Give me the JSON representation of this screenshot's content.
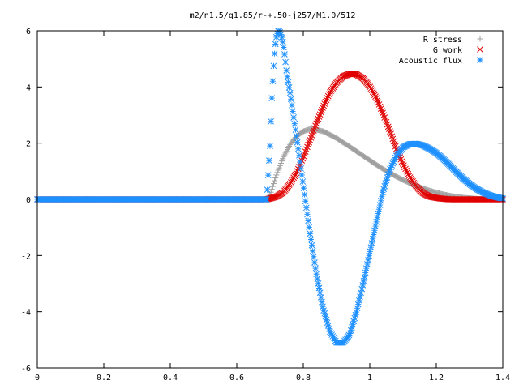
{
  "chart_data": {
    "type": "scatter",
    "title": "m2/n1.5/q1.85/r-+.50-j257/M1.0/512",
    "xlabel": "",
    "ylabel": "",
    "xlim": [
      0,
      1.4
    ],
    "ylim": [
      -6,
      6
    ],
    "xticks": [
      0,
      0.2,
      0.4,
      0.6,
      0.8,
      1.0,
      1.2,
      1.4
    ],
    "xtick_labels": [
      "0",
      "0.2",
      "0.4",
      "0.6",
      "0.8",
      "1",
      "1.2",
      "1.4"
    ],
    "yticks": [
      -6,
      -4,
      -2,
      0,
      2,
      4,
      6
    ],
    "ytick_labels": [
      "-6",
      "-4",
      "-2",
      "0",
      "2",
      "4",
      "6"
    ],
    "grid": false,
    "legend_position": "top-right",
    "series": [
      {
        "name": "R stress",
        "marker": "plus",
        "color": "#a0a0a0",
        "x": [
          0,
          0.05,
          0.1,
          0.15,
          0.2,
          0.25,
          0.3,
          0.35,
          0.4,
          0.45,
          0.5,
          0.55,
          0.6,
          0.65,
          0.69,
          0.7,
          0.72,
          0.74,
          0.76,
          0.78,
          0.8,
          0.82,
          0.84,
          0.86,
          0.88,
          0.9,
          0.92,
          0.94,
          0.96,
          0.98,
          1.0,
          1.02,
          1.04,
          1.06,
          1.08,
          1.1,
          1.12,
          1.14,
          1.16,
          1.18,
          1.2,
          1.22,
          1.24,
          1.26,
          1.28,
          1.3,
          1.32,
          1.34,
          1.36,
          1.38,
          1.4
        ],
        "y": [
          0,
          0,
          0,
          0,
          0,
          0,
          0,
          0,
          0,
          0,
          0,
          0,
          0,
          0,
          0,
          0.15,
          0.9,
          1.5,
          1.95,
          2.25,
          2.42,
          2.5,
          2.48,
          2.42,
          2.3,
          2.18,
          2.02,
          1.87,
          1.71,
          1.55,
          1.39,
          1.23,
          1.08,
          0.94,
          0.81,
          0.69,
          0.58,
          0.48,
          0.39,
          0.31,
          0.24,
          0.18,
          0.13,
          0.09,
          0.06,
          0.04,
          0.02,
          0.01,
          0.005,
          0,
          0
        ]
      },
      {
        "name": "G work",
        "marker": "cross",
        "color": "#e00000",
        "x": [
          0,
          0.05,
          0.1,
          0.15,
          0.2,
          0.25,
          0.3,
          0.35,
          0.4,
          0.45,
          0.5,
          0.55,
          0.6,
          0.65,
          0.69,
          0.7,
          0.72,
          0.74,
          0.76,
          0.78,
          0.8,
          0.82,
          0.84,
          0.86,
          0.88,
          0.9,
          0.92,
          0.94,
          0.96,
          0.98,
          1.0,
          1.02,
          1.04,
          1.06,
          1.08,
          1.1,
          1.12,
          1.14,
          1.16,
          1.18,
          1.2,
          1.22,
          1.24,
          1.26,
          1.28,
          1.3,
          1.32,
          1.34,
          1.36,
          1.38,
          1.4
        ],
        "y": [
          0,
          0,
          0,
          0,
          0,
          0,
          0,
          0,
          0,
          0,
          0,
          0,
          0,
          0,
          0,
          0.03,
          0.1,
          0.25,
          0.55,
          0.95,
          1.5,
          2.1,
          2.72,
          3.3,
          3.8,
          4.15,
          4.38,
          4.47,
          4.45,
          4.3,
          4.02,
          3.6,
          3.05,
          2.45,
          1.8,
          1.25,
          0.8,
          0.45,
          0.22,
          0.1,
          0.05,
          0.02,
          0,
          0,
          0,
          0,
          0,
          0,
          0,
          0,
          0
        ]
      },
      {
        "name": "Acoustic flux",
        "marker": "star",
        "color": "#1e90ff",
        "x": [
          0,
          0.05,
          0.1,
          0.15,
          0.2,
          0.25,
          0.3,
          0.35,
          0.4,
          0.45,
          0.5,
          0.55,
          0.6,
          0.65,
          0.69,
          0.7,
          0.705,
          0.71,
          0.715,
          0.72,
          0.725,
          0.73,
          0.735,
          0.74,
          0.745,
          0.75,
          0.76,
          0.77,
          0.78,
          0.79,
          0.8,
          0.82,
          0.84,
          0.86,
          0.88,
          0.9,
          0.92,
          0.94,
          0.96,
          0.98,
          1.0,
          1.02,
          1.04,
          1.06,
          1.08,
          1.1,
          1.12,
          1.14,
          1.16,
          1.18,
          1.2,
          1.22,
          1.24,
          1.26,
          1.28,
          1.3,
          1.32,
          1.34,
          1.36,
          1.38,
          1.4
        ],
        "y": [
          0,
          0,
          0,
          0,
          0,
          0,
          0,
          0,
          0,
          0,
          0,
          0,
          0,
          0,
          0,
          1.9,
          3.5,
          4.6,
          5.4,
          5.85,
          6.0,
          5.95,
          5.8,
          5.5,
          5.05,
          4.5,
          3.8,
          3.0,
          2.2,
          1.35,
          0.5,
          -1.2,
          -2.7,
          -3.9,
          -4.7,
          -5.1,
          -5.1,
          -4.8,
          -4.0,
          -3.0,
          -1.9,
          -0.8,
          0.3,
          1.05,
          1.55,
          1.85,
          1.97,
          1.98,
          1.92,
          1.8,
          1.65,
          1.45,
          1.22,
          0.98,
          0.75,
          0.55,
          0.38,
          0.25,
          0.15,
          0.08,
          0.03
        ]
      }
    ]
  }
}
